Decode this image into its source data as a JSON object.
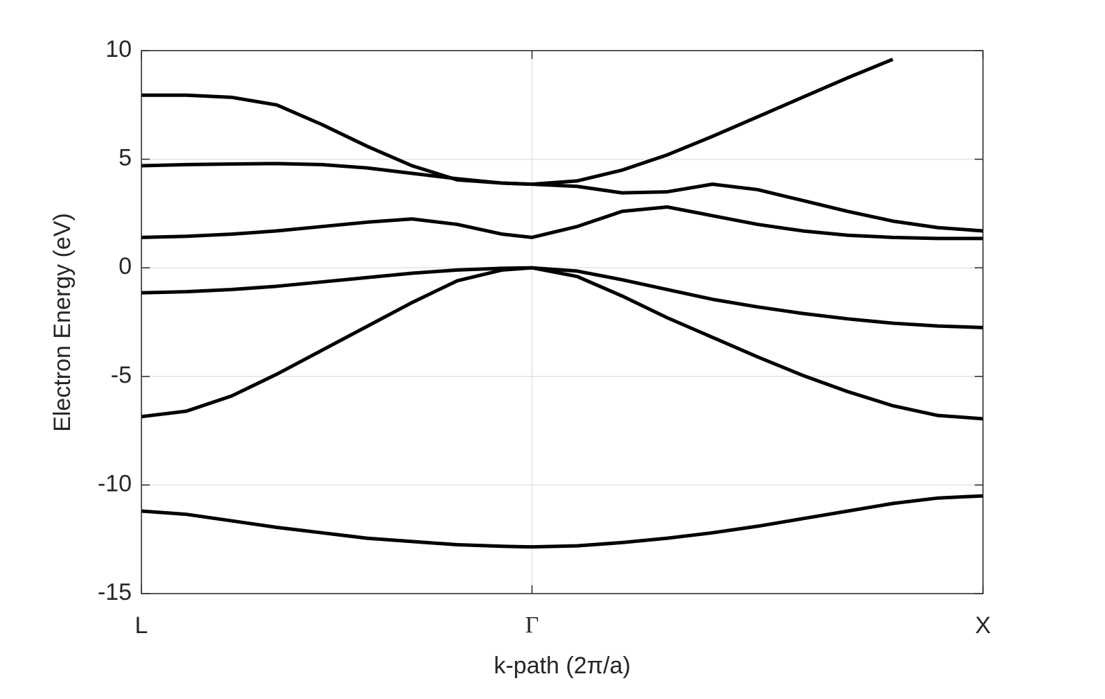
{
  "chart_data": {
    "type": "line",
    "xlabel": "k-path (2π/a)",
    "ylabel": "Electron Energy (eV)",
    "x": [
      0,
      0.1,
      0.2,
      0.3,
      0.4,
      0.5,
      0.6,
      0.7,
      0.8,
      0.866,
      0.966,
      1.066,
      1.166,
      1.266,
      1.366,
      1.466,
      1.566,
      1.666,
      1.766,
      1.866
    ],
    "xlim": [
      0,
      1.866
    ],
    "xticks": [
      {
        "value": 0,
        "label": "L"
      },
      {
        "value": 0.866,
        "label": "Γ"
      },
      {
        "value": 1.866,
        "label": "X"
      }
    ],
    "ylim": [
      -15,
      10
    ],
    "yticks": [
      -15,
      -10,
      -5,
      0,
      5,
      10
    ],
    "grid": true,
    "series": [
      {
        "color": "#000000",
        "values": [
          -11.2,
          -11.35,
          -11.65,
          -11.95,
          -12.2,
          -12.45,
          -12.6,
          -12.75,
          -12.82,
          -12.85,
          -12.8,
          -12.65,
          -12.45,
          -12.2,
          -11.9,
          -11.55,
          -11.2,
          -10.85,
          -10.6,
          -10.5
        ]
      },
      {
        "color": "#000000",
        "values": [
          -6.85,
          -6.6,
          -5.9,
          -4.9,
          -3.8,
          -2.7,
          -1.6,
          -0.6,
          -0.1,
          0,
          -0.4,
          -1.3,
          -2.3,
          -3.2,
          -4.1,
          -4.95,
          -5.7,
          -6.35,
          -6.8,
          -6.95
        ]
      },
      {
        "color": "#000000",
        "values": [
          -1.15,
          -1.1,
          -1.0,
          -0.85,
          -0.65,
          -0.45,
          -0.25,
          -0.1,
          -0.02,
          0,
          -0.15,
          -0.55,
          -1.0,
          -1.45,
          -1.8,
          -2.1,
          -2.35,
          -2.55,
          -2.68,
          -2.75
        ]
      },
      {
        "color": "#000000",
        "values": [
          1.4,
          1.45,
          1.55,
          1.7,
          1.9,
          2.1,
          2.25,
          2.0,
          1.55,
          1.4,
          1.9,
          2.6,
          2.8,
          2.4,
          2.0,
          1.7,
          1.5,
          1.4,
          1.35,
          1.35
        ]
      },
      {
        "color": "#000000",
        "values": [
          4.7,
          4.75,
          4.78,
          4.8,
          4.75,
          4.6,
          4.35,
          4.1,
          3.9,
          3.85,
          3.75,
          3.45,
          3.5,
          3.85,
          3.6,
          3.1,
          2.6,
          2.15,
          1.85,
          1.7
        ]
      },
      {
        "color": "#000000",
        "values": [
          7.95,
          7.95,
          7.85,
          7.5,
          6.6,
          5.6,
          4.7,
          4.05,
          3.9,
          3.85,
          4.0,
          4.5,
          5.2,
          6.05,
          6.95,
          7.85,
          8.75,
          9.6,
          null,
          null
        ]
      }
    ]
  }
}
